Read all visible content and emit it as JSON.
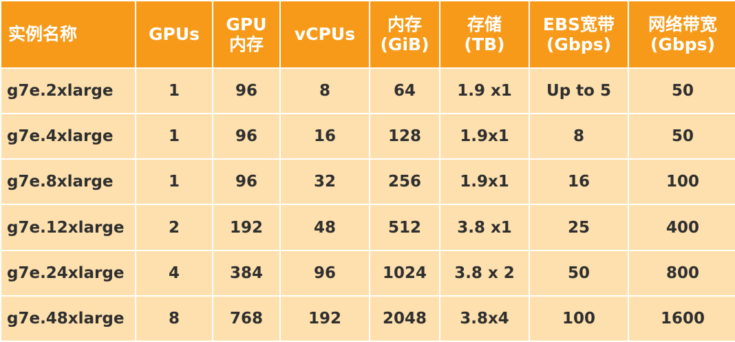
{
  "colors": {
    "header_bg": "#f79a1a",
    "header_text": "#ffffff",
    "cell_bg": "#fde0ad",
    "cell_text": "#2f2f2f",
    "grid": "#ffffff"
  },
  "table": {
    "headers": [
      "实例名称",
      "GPUs",
      "GPU\n内存",
      "vCPUs",
      "内存\n(GiB)",
      "存储\n(TB)",
      "EBS宽带\n(Gbps)",
      "网络带宽\n(Gbps)"
    ],
    "rows": [
      [
        "g7e.2xlarge",
        "1",
        "96",
        "8",
        "64",
        "1.9 x1",
        "Up to 5",
        "50"
      ],
      [
        "g7e.4xlarge",
        "1",
        "96",
        "16",
        "128",
        "1.9x1",
        "8",
        "50"
      ],
      [
        "g7e.8xlarge",
        "1",
        "96",
        "32",
        "256",
        "1.9x1",
        "16",
        "100"
      ],
      [
        "g7e.12xlarge",
        "2",
        "192",
        "48",
        "512",
        "3.8 x1",
        "25",
        "400"
      ],
      [
        "g7e.24xlarge",
        "4",
        "384",
        "96",
        "1024",
        "3.8 x 2",
        "50",
        "800"
      ],
      [
        "g7e.48xlarge",
        "8",
        "768",
        "192",
        "2048",
        "3.8x4",
        "100",
        "1600"
      ]
    ]
  }
}
